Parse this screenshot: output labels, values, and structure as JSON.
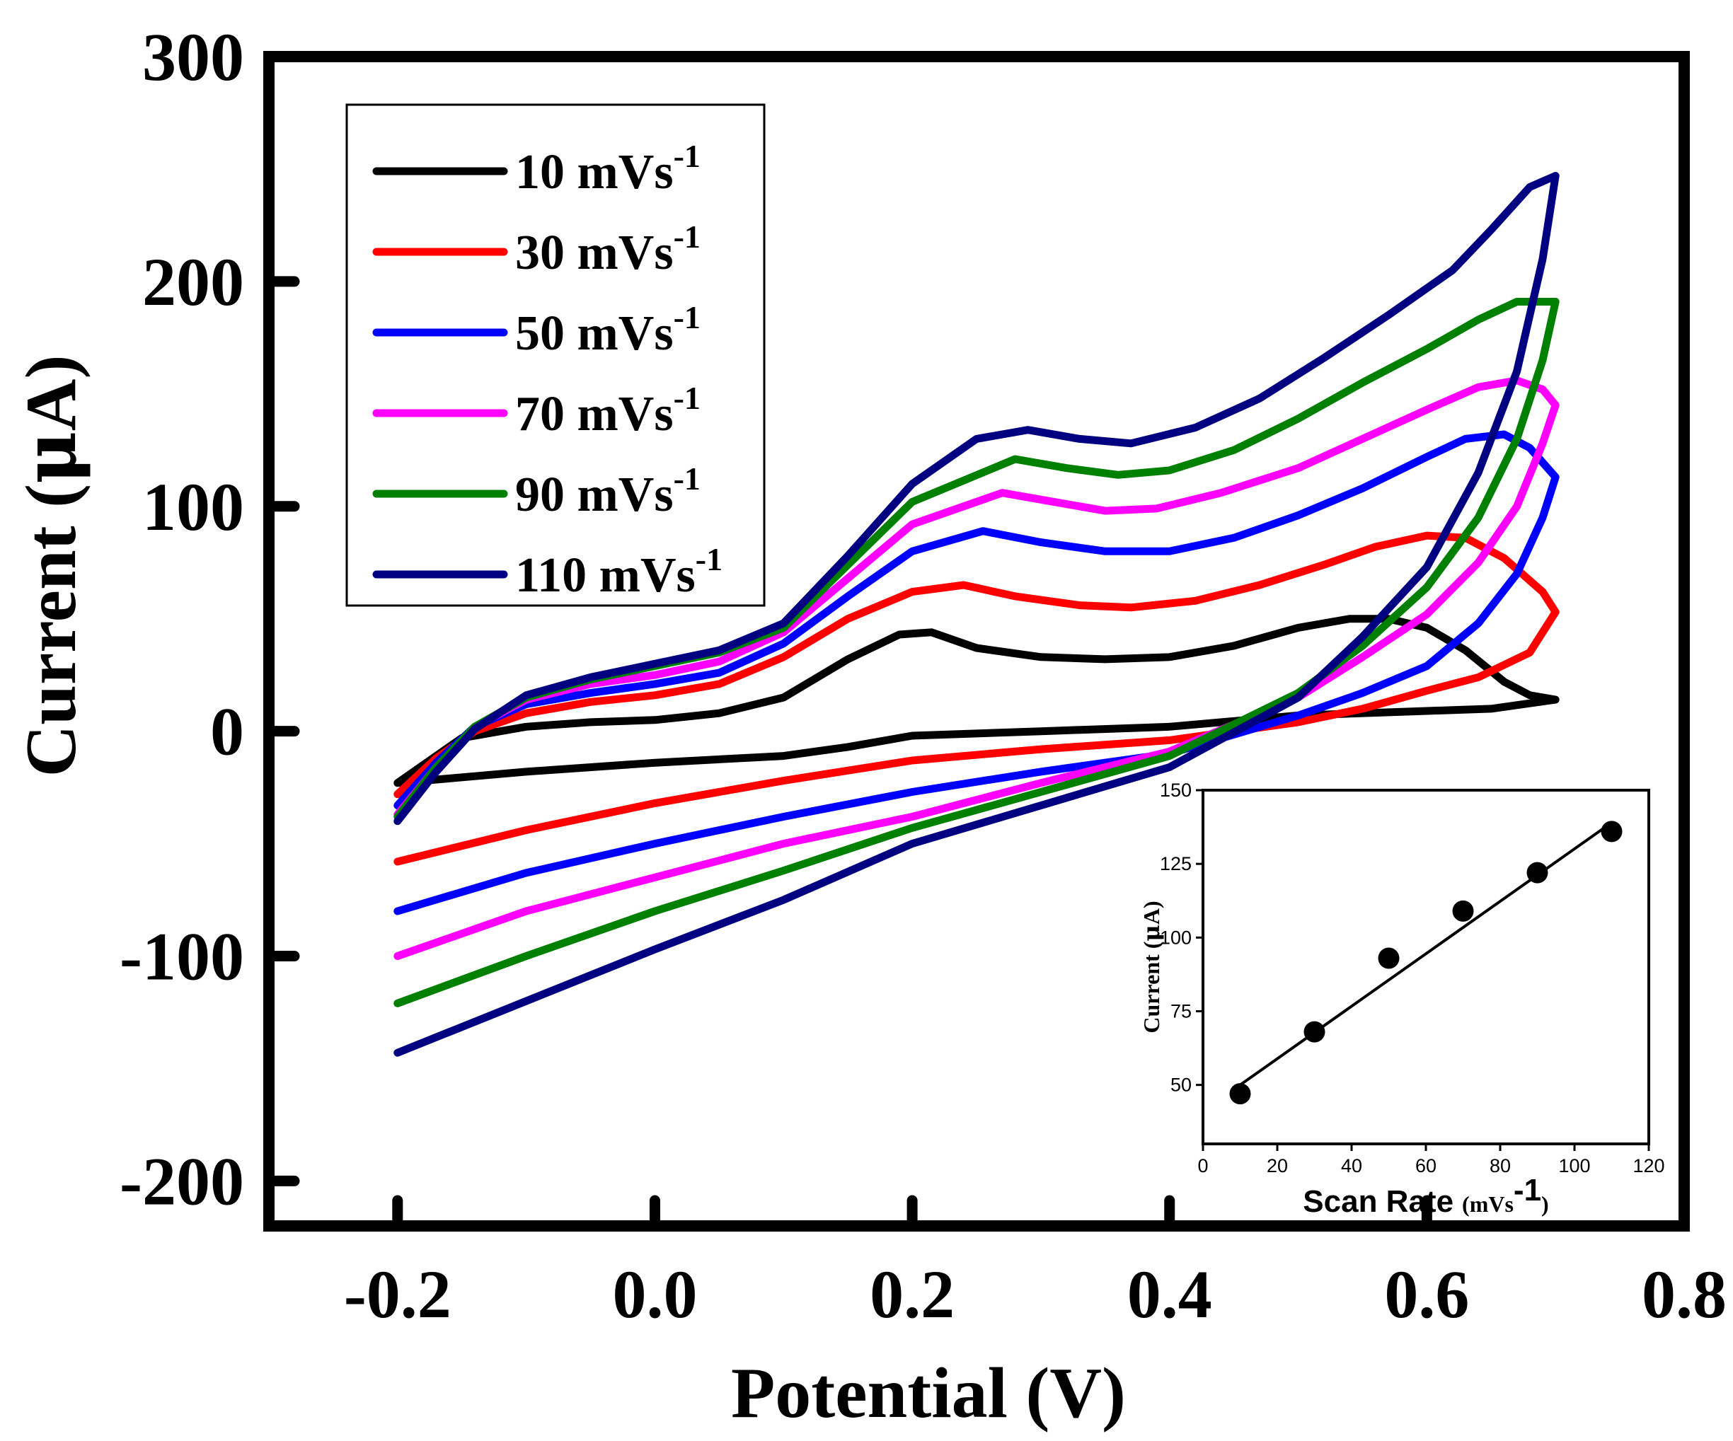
{
  "chart_data": [
    {
      "type": "line",
      "description_kind": "cyclic voltammogram",
      "xlabel": "Potential (V)",
      "ylabel_parts": [
        "Current (",
        "μ",
        "A)"
      ],
      "xlim": [
        -0.3,
        0.8
      ],
      "ylim": [
        -220,
        300
      ],
      "xticks": [
        -0.2,
        0.0,
        0.2,
        0.4,
        0.6,
        0.8
      ],
      "xtick_labels": [
        "-0.2",
        "0.0",
        "0.2",
        "0.4",
        "0.6",
        "0.8"
      ],
      "yticks": [
        -200,
        -100,
        0,
        100,
        200,
        300
      ],
      "ytick_labels": [
        "-200",
        "-100",
        "0",
        "100",
        "200",
        "300"
      ],
      "legend_position": "top-left",
      "series": [
        {
          "name": "10 mVs-1",
          "label": "10 mVs",
          "sup": "-1",
          "color": "#000000",
          "anodic": [
            [
              -0.2,
              -23
            ],
            [
              -0.15,
              -3
            ],
            [
              -0.1,
              2
            ],
            [
              -0.05,
              4
            ],
            [
              0.0,
              5
            ],
            [
              0.05,
              8
            ],
            [
              0.1,
              15
            ],
            [
              0.15,
              32
            ],
            [
              0.19,
              43
            ],
            [
              0.215,
              44
            ],
            [
              0.25,
              37
            ],
            [
              0.3,
              33
            ],
            [
              0.35,
              32
            ],
            [
              0.4,
              33
            ],
            [
              0.45,
              38
            ],
            [
              0.5,
              46
            ],
            [
              0.54,
              50
            ],
            [
              0.57,
              50
            ],
            [
              0.6,
              46
            ],
            [
              0.63,
              36
            ],
            [
              0.66,
              22
            ],
            [
              0.68,
              16
            ],
            [
              0.7,
              14
            ]
          ],
          "cathodic": [
            [
              0.7,
              14
            ],
            [
              0.65,
              10
            ],
            [
              0.6,
              9
            ],
            [
              0.5,
              7
            ],
            [
              0.4,
              2
            ],
            [
              0.3,
              0
            ],
            [
              0.2,
              -2
            ],
            [
              0.15,
              -7
            ],
            [
              0.1,
              -11
            ],
            [
              0.0,
              -14
            ],
            [
              -0.1,
              -18
            ],
            [
              -0.2,
              -23
            ]
          ]
        },
        {
          "name": "30 mVs-1",
          "label": "30 mVs",
          "sup": "-1",
          "color": "#ff0000",
          "anodic": [
            [
              -0.2,
              -28
            ],
            [
              -0.17,
              -12
            ],
            [
              -0.14,
              0
            ],
            [
              -0.1,
              8
            ],
            [
              -0.05,
              13
            ],
            [
              0.0,
              16
            ],
            [
              0.05,
              21
            ],
            [
              0.1,
              33
            ],
            [
              0.15,
              50
            ],
            [
              0.2,
              62
            ],
            [
              0.24,
              65
            ],
            [
              0.28,
              60
            ],
            [
              0.33,
              56
            ],
            [
              0.37,
              55
            ],
            [
              0.42,
              58
            ],
            [
              0.47,
              65
            ],
            [
              0.52,
              74
            ],
            [
              0.56,
              82
            ],
            [
              0.6,
              87
            ],
            [
              0.63,
              86
            ],
            [
              0.66,
              77
            ],
            [
              0.69,
              62
            ],
            [
              0.7,
              53
            ]
          ],
          "cathodic": [
            [
              0.7,
              53
            ],
            [
              0.68,
              35
            ],
            [
              0.64,
              24
            ],
            [
              0.6,
              18
            ],
            [
              0.55,
              10
            ],
            [
              0.5,
              4
            ],
            [
              0.4,
              -4
            ],
            [
              0.3,
              -8
            ],
            [
              0.2,
              -13
            ],
            [
              0.1,
              -22
            ],
            [
              0.0,
              -32
            ],
            [
              -0.1,
              -44
            ],
            [
              -0.2,
              -58
            ]
          ]
        },
        {
          "name": "50 mVs-1",
          "label": "50 mVs",
          "sup": "-1",
          "color": "#0000ff",
          "anodic": [
            [
              -0.2,
              -33
            ],
            [
              -0.17,
              -14
            ],
            [
              -0.14,
              2
            ],
            [
              -0.1,
              12
            ],
            [
              -0.05,
              17
            ],
            [
              0.0,
              21
            ],
            [
              0.05,
              26
            ],
            [
              0.1,
              39
            ],
            [
              0.15,
              60
            ],
            [
              0.2,
              80
            ],
            [
              0.255,
              89
            ],
            [
              0.3,
              84
            ],
            [
              0.35,
              80
            ],
            [
              0.4,
              80
            ],
            [
              0.45,
              86
            ],
            [
              0.5,
              96
            ],
            [
              0.55,
              108
            ],
            [
              0.6,
              122
            ],
            [
              0.63,
              130
            ],
            [
              0.66,
              132
            ],
            [
              0.68,
              126
            ],
            [
              0.7,
              113
            ]
          ],
          "cathodic": [
            [
              0.7,
              113
            ],
            [
              0.69,
              95
            ],
            [
              0.67,
              70
            ],
            [
              0.64,
              48
            ],
            [
              0.6,
              29
            ],
            [
              0.55,
              17
            ],
            [
              0.5,
              7
            ],
            [
              0.4,
              -10
            ],
            [
              0.3,
              -18
            ],
            [
              0.2,
              -27
            ],
            [
              0.1,
              -38
            ],
            [
              0.0,
              -50
            ],
            [
              -0.1,
              -63
            ],
            [
              -0.2,
              -80
            ]
          ]
        },
        {
          "name": "70 mVs-1",
          "label": "70 mVs",
          "sup": "-1",
          "color": "#ff00ff",
          "anodic": [
            [
              -0.2,
              -37
            ],
            [
              -0.17,
              -16
            ],
            [
              -0.14,
              2
            ],
            [
              -0.1,
              14
            ],
            [
              -0.05,
              21
            ],
            [
              0.0,
              25
            ],
            [
              0.05,
              31
            ],
            [
              0.1,
              44
            ],
            [
              0.15,
              68
            ],
            [
              0.2,
              92
            ],
            [
              0.27,
              106
            ],
            [
              0.31,
              102
            ],
            [
              0.35,
              98
            ],
            [
              0.39,
              99
            ],
            [
              0.44,
              106
            ],
            [
              0.5,
              117
            ],
            [
              0.55,
              130
            ],
            [
              0.6,
              143
            ],
            [
              0.64,
              153
            ],
            [
              0.67,
              156
            ],
            [
              0.69,
              152
            ],
            [
              0.7,
              145
            ]
          ],
          "cathodic": [
            [
              0.7,
              145
            ],
            [
              0.69,
              128
            ],
            [
              0.67,
              100
            ],
            [
              0.64,
              75
            ],
            [
              0.6,
              52
            ],
            [
              0.55,
              33
            ],
            [
              0.5,
              15
            ],
            [
              0.4,
              -9
            ],
            [
              0.3,
              -23
            ],
            [
              0.2,
              -38
            ],
            [
              0.1,
              -50
            ],
            [
              0.0,
              -65
            ],
            [
              -0.1,
              -80
            ],
            [
              -0.2,
              -100
            ]
          ]
        },
        {
          "name": "90 mVs-1",
          "label": "90 mVs",
          "sup": "-1",
          "color": "#008000",
          "anodic": [
            [
              -0.2,
              -38
            ],
            [
              -0.17,
              -16
            ],
            [
              -0.14,
              2
            ],
            [
              -0.1,
              15
            ],
            [
              -0.05,
              23
            ],
            [
              0.0,
              29
            ],
            [
              0.05,
              35
            ],
            [
              0.1,
              46
            ],
            [
              0.15,
              74
            ],
            [
              0.2,
              102
            ],
            [
              0.28,
              121
            ],
            [
              0.32,
              117
            ],
            [
              0.36,
              114
            ],
            [
              0.4,
              116
            ],
            [
              0.45,
              125
            ],
            [
              0.5,
              139
            ],
            [
              0.55,
              155
            ],
            [
              0.6,
              170
            ],
            [
              0.64,
              183
            ],
            [
              0.67,
              191
            ],
            [
              0.7,
              191
            ]
          ],
          "cathodic": [
            [
              0.7,
              191
            ],
            [
              0.69,
              165
            ],
            [
              0.67,
              130
            ],
            [
              0.64,
              95
            ],
            [
              0.6,
              64
            ],
            [
              0.55,
              38
            ],
            [
              0.5,
              17
            ],
            [
              0.4,
              -11
            ],
            [
              0.3,
              -27
            ],
            [
              0.2,
              -43
            ],
            [
              0.1,
              -62
            ],
            [
              0.0,
              -80
            ],
            [
              -0.1,
              -100
            ],
            [
              -0.2,
              -121
            ]
          ]
        },
        {
          "name": "110 mVs-1",
          "label": "110 mVs",
          "sup": "-1",
          "color": "#000080",
          "anodic": [
            [
              -0.2,
              -40
            ],
            [
              -0.17,
              -18
            ],
            [
              -0.14,
              1
            ],
            [
              -0.1,
              16
            ],
            [
              -0.05,
              24
            ],
            [
              0.0,
              30
            ],
            [
              0.05,
              36
            ],
            [
              0.1,
              48
            ],
            [
              0.15,
              78
            ],
            [
              0.2,
              110
            ],
            [
              0.25,
              130
            ],
            [
              0.29,
              134
            ],
            [
              0.33,
              130
            ],
            [
              0.37,
              128
            ],
            [
              0.42,
              135
            ],
            [
              0.47,
              148
            ],
            [
              0.52,
              166
            ],
            [
              0.57,
              185
            ],
            [
              0.62,
              205
            ],
            [
              0.65,
              223
            ],
            [
              0.68,
              242
            ],
            [
              0.7,
              247
            ]
          ],
          "cathodic": [
            [
              0.7,
              247
            ],
            [
              0.69,
              210
            ],
            [
              0.67,
              160
            ],
            [
              0.64,
              115
            ],
            [
              0.6,
              73
            ],
            [
              0.55,
              42
            ],
            [
              0.5,
              15
            ],
            [
              0.4,
              -16
            ],
            [
              0.3,
              -33
            ],
            [
              0.2,
              -50
            ],
            [
              0.1,
              -75
            ],
            [
              0.0,
              -97
            ],
            [
              -0.1,
              -120
            ],
            [
              -0.2,
              -143
            ]
          ]
        }
      ]
    },
    {
      "type": "scatter",
      "description_kind": "inset with linear fit",
      "xlabel": "Scan Rate",
      "xlabel_unit": "(mVs",
      "xlabel_sup": "-1",
      "xlabel_close": ")",
      "ylabel_parts": [
        "Current (",
        "μ",
        "A)"
      ],
      "xlim": [
        0,
        120
      ],
      "ylim": [
        30,
        150
      ],
      "xticks": [
        0,
        20,
        40,
        60,
        80,
        100,
        120
      ],
      "xtick_labels": [
        "0",
        "20",
        "40",
        "60",
        "80",
        "100",
        "120"
      ],
      "yticks": [
        50,
        75,
        100,
        125,
        150
      ],
      "ytick_labels": [
        "50",
        "75",
        "100",
        "125",
        "150"
      ],
      "points": {
        "x": [
          10,
          30,
          50,
          70,
          90,
          110
        ],
        "y": [
          47,
          68,
          93,
          109,
          122,
          136
        ]
      },
      "fit_line": {
        "x": [
          10,
          110
        ],
        "y": [
          50,
          139
        ]
      },
      "legend_position": "none"
    }
  ]
}
